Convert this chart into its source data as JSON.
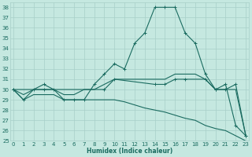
{
  "xlabel": "Humidex (Indice chaleur)",
  "background_color": "#c5e8e0",
  "grid_color": "#a8cfc8",
  "line_color": "#1a6b60",
  "ylim": [
    25,
    38.5
  ],
  "xlim": [
    -0.3,
    23.3
  ],
  "yticks": [
    25,
    26,
    27,
    28,
    29,
    30,
    31,
    32,
    33,
    34,
    35,
    36,
    37,
    38
  ],
  "xticks": [
    0,
    1,
    2,
    3,
    4,
    5,
    6,
    7,
    8,
    9,
    10,
    11,
    12,
    13,
    14,
    15,
    16,
    17,
    18,
    19,
    20,
    21,
    22,
    23
  ],
  "series": [
    {
      "x": [
        0,
        1,
        2,
        3,
        4,
        5,
        6,
        7,
        8,
        9,
        10,
        11,
        12,
        13,
        14,
        15,
        16,
        17,
        18,
        19,
        20,
        21,
        22,
        23
      ],
      "y": [
        30,
        29,
        30,
        30.5,
        30,
        29,
        29,
        29,
        30.5,
        31.5,
        32.5,
        32,
        34.5,
        35.5,
        38,
        38,
        38,
        35.5,
        34.5,
        31.5,
        30,
        30.5,
        26.5,
        25.5
      ],
      "has_marker": true
    },
    {
      "x": [
        0,
        3,
        9,
        10,
        14,
        15,
        16,
        17,
        19,
        20,
        21,
        22,
        23
      ],
      "y": [
        30,
        30,
        30,
        31,
        30.5,
        30.5,
        31,
        31,
        31,
        30,
        30,
        30.5,
        25.5
      ],
      "has_marker": true
    },
    {
      "x": [
        0,
        1,
        2,
        3,
        4,
        5,
        6,
        7,
        8,
        9,
        10,
        11,
        12,
        13,
        14,
        15,
        16,
        17,
        18,
        19,
        20,
        21,
        22,
        23
      ],
      "y": [
        30,
        29.5,
        30,
        30,
        30,
        29.5,
        29.5,
        30,
        30,
        30.5,
        31,
        31,
        31,
        31,
        31,
        31,
        31.5,
        31.5,
        31.5,
        31,
        30,
        30,
        30,
        25.5
      ],
      "has_marker": false
    },
    {
      "x": [
        0,
        1,
        2,
        3,
        4,
        5,
        6,
        7,
        8,
        9,
        10,
        11,
        12,
        13,
        14,
        15,
        16,
        17,
        18,
        19,
        20,
        21,
        22,
        23
      ],
      "y": [
        30,
        29,
        29.5,
        29.5,
        29.5,
        29,
        29,
        29,
        29,
        29,
        29,
        28.8,
        28.5,
        28.2,
        28,
        27.8,
        27.5,
        27.2,
        27,
        26.5,
        26.2,
        26,
        25.5,
        25
      ],
      "has_marker": false
    }
  ]
}
